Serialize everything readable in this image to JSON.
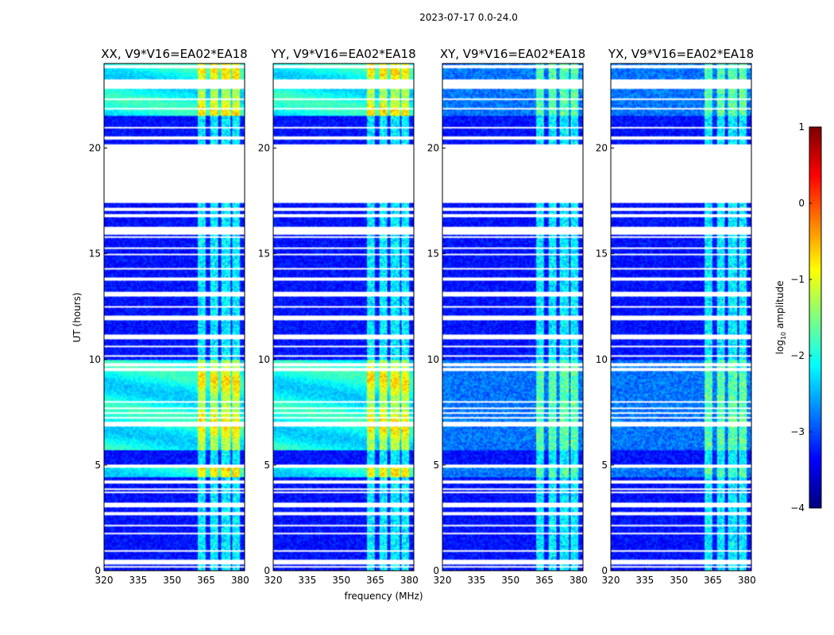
{
  "chart_data": {
    "type": "heatmap",
    "suptitle": "2023-07-17 0.0-24.0",
    "xlabel": "frequency (MHz)",
    "ylabel": "UT (hours)",
    "xlim": [
      320,
      382
    ],
    "ylim": [
      0,
      24
    ],
    "x_ticks": [
      320,
      335,
      350,
      365,
      380
    ],
    "y_ticks": [
      0,
      5,
      10,
      15,
      20
    ],
    "panels": [
      {
        "title": "XX, V9*V16=EA02*EA18",
        "pol": "XX"
      },
      {
        "title": "YY, V9*V16=EA02*EA18",
        "pol": "YY"
      },
      {
        "title": "XY, V9*V16=EA02*EA18",
        "pol": "XY"
      },
      {
        "title": "YX, V9*V16=EA02*EA18",
        "pol": "YX"
      }
    ],
    "colorbar": {
      "label": "log10 amplitude",
      "label_main": "log",
      "label_sub": "10",
      "label_tail": " amplitude",
      "vmin": -4,
      "vmax": 1,
      "ticks": [
        -4,
        -3,
        -2,
        -1,
        0,
        1
      ],
      "tick_labels": [
        "−4",
        "−3",
        "−2",
        "−1",
        "0",
        "1"
      ],
      "colormap": "jet"
    },
    "flagged_time_ranges_hours": [
      [
        17.5,
        20.2
      ],
      [
        4.1,
        4.3
      ],
      [
        3.0,
        3.2
      ]
    ],
    "rfi_channel_ranges_mhz": [
      [
        361,
        365
      ],
      [
        367,
        370
      ],
      [
        372,
        376
      ],
      [
        376.5,
        380
      ]
    ],
    "strong_rfi_band_hours": [
      [
        5.7,
        10.0
      ],
      [
        4.4,
        4.9
      ],
      [
        21.5,
        24.0
      ]
    ]
  }
}
